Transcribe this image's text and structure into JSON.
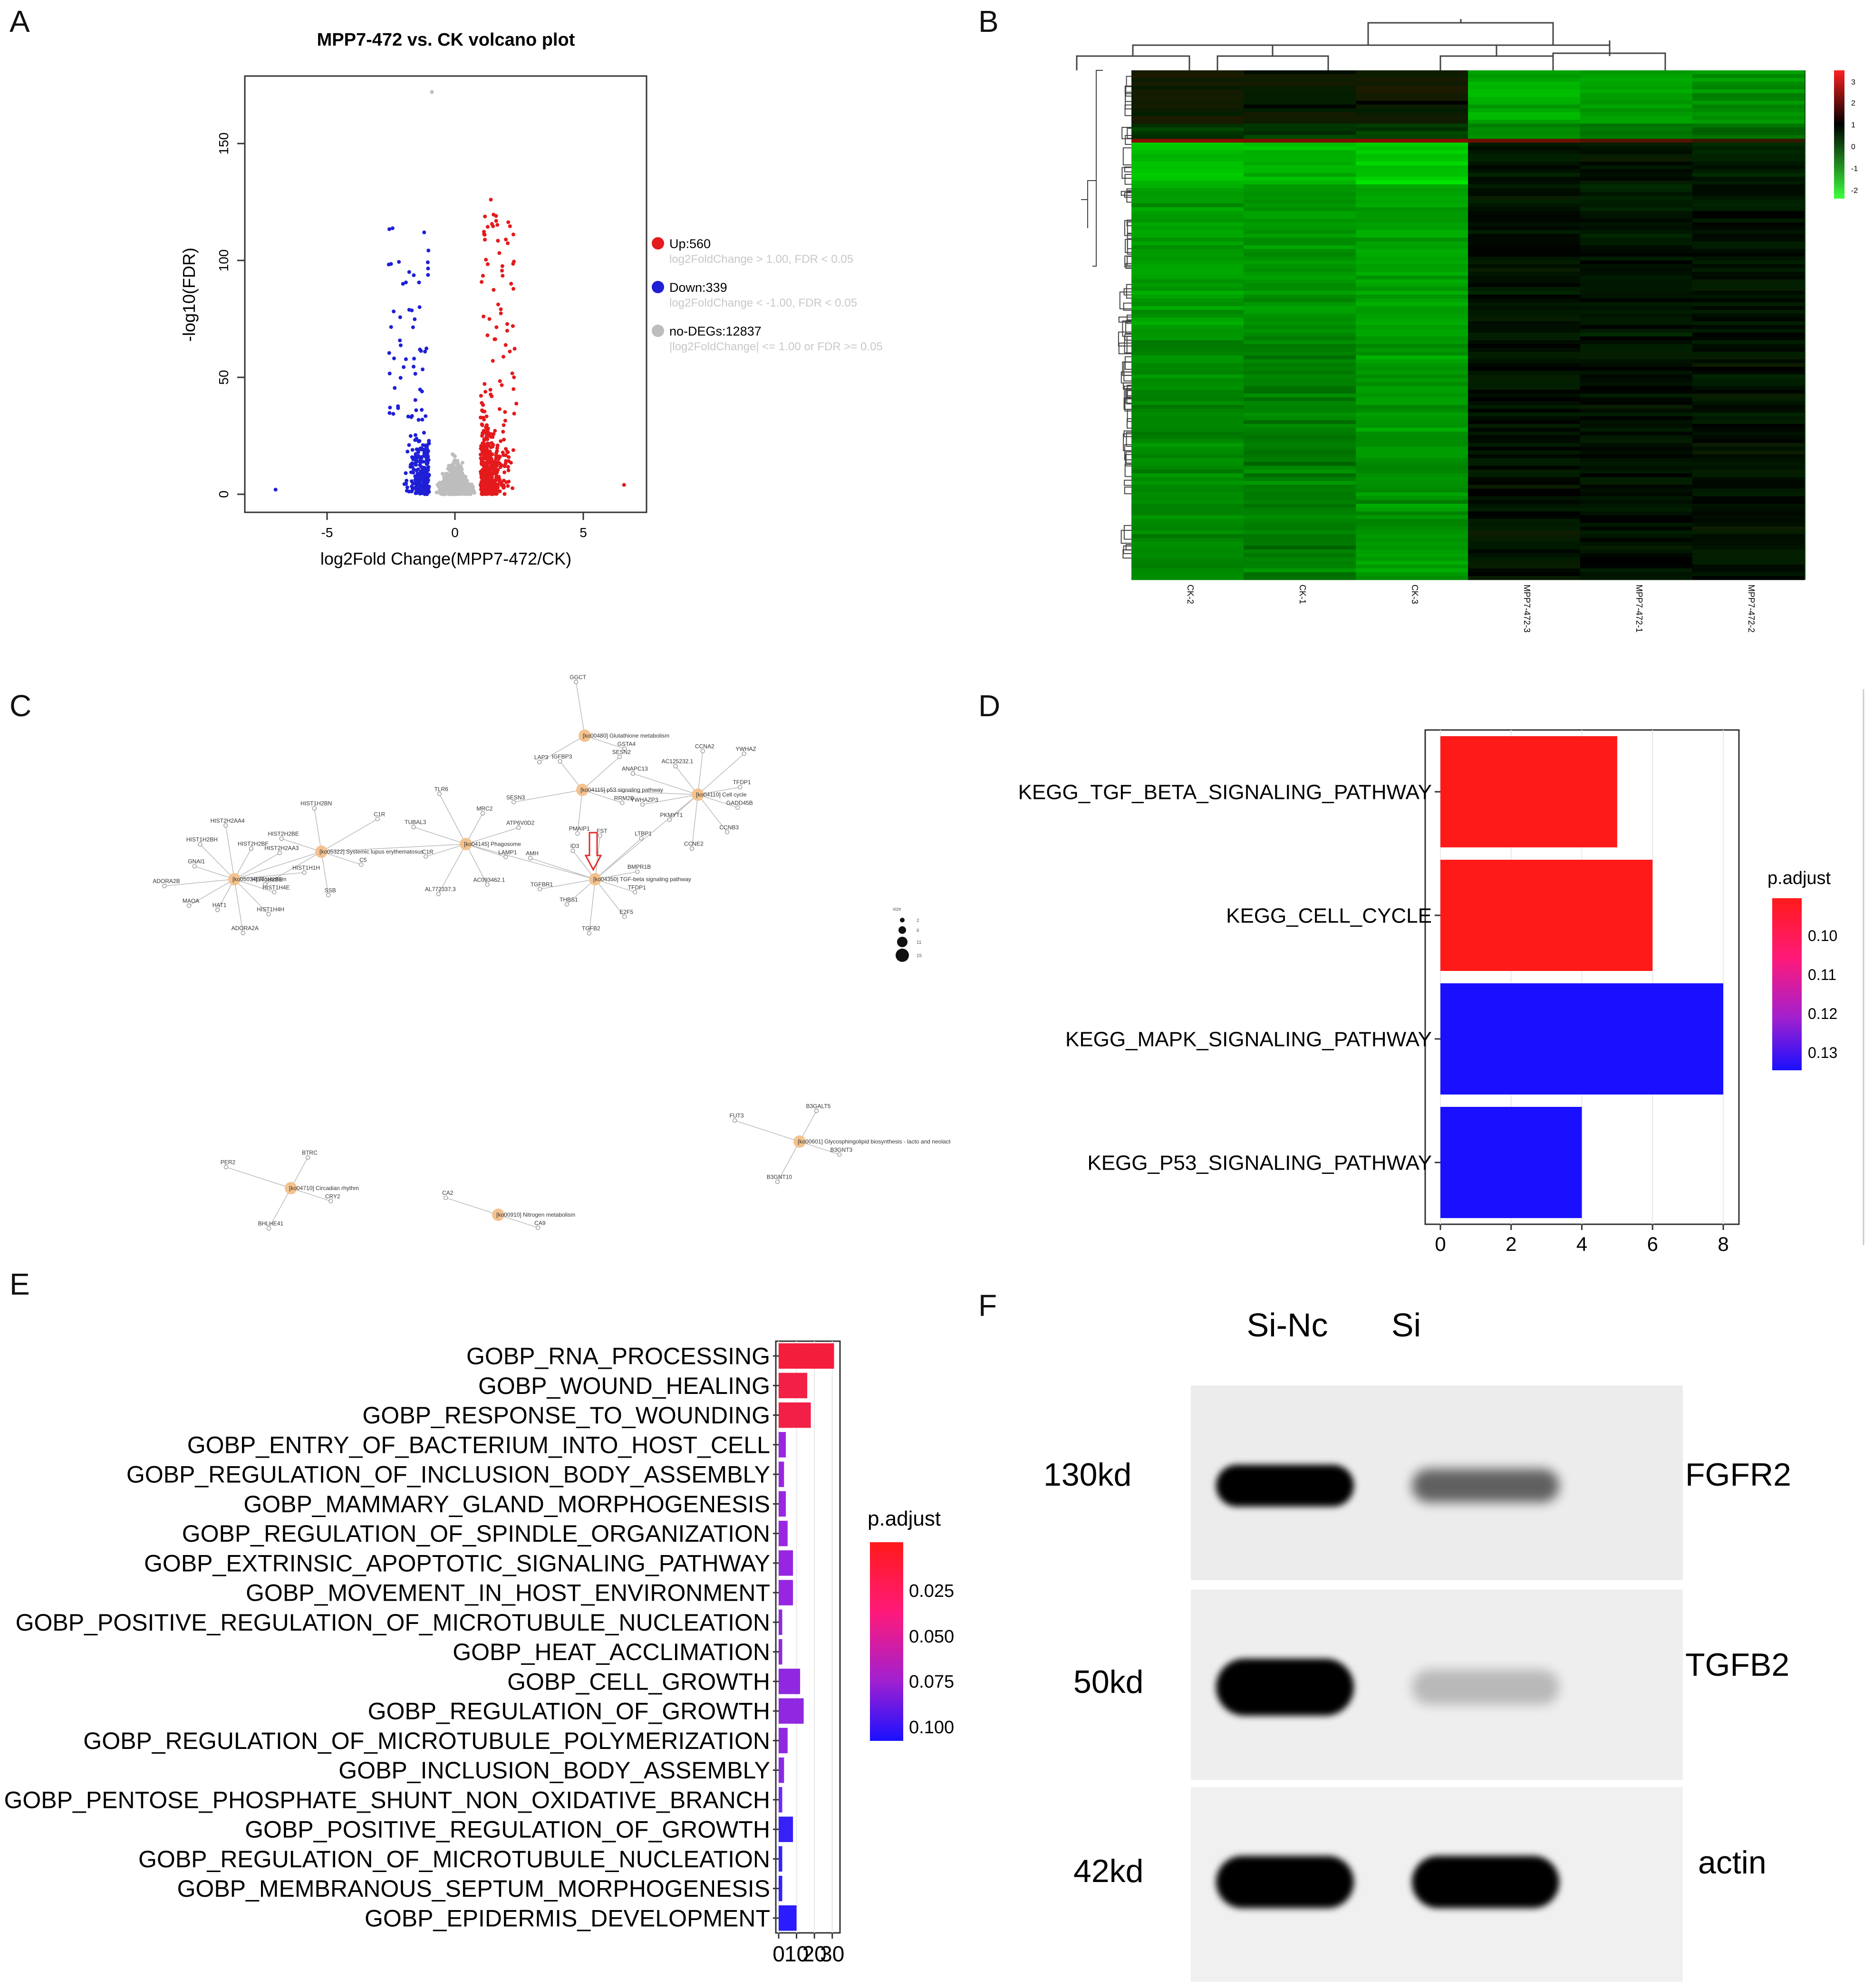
{
  "panel_letters": [
    "A",
    "B",
    "C",
    "D",
    "E",
    "F"
  ],
  "volcano": {
    "title": "MPP7-472 vs. CK volcano plot",
    "xlabel": "log2Fold Change(MPP7-472/CK)",
    "ylabel": "-log10(FDR)",
    "xticks": [
      "-5",
      "0",
      "5"
    ],
    "yticks": [
      "0",
      "50",
      "100",
      "150"
    ],
    "legend": [
      {
        "label": "Up:560",
        "note": "log2FoldChange > 1.00, FDR < 0.05",
        "color": "#e41a1c"
      },
      {
        "label": "Down:339",
        "note": "log2FoldChange < -1.00, FDR < 0.05",
        "color": "#1f1fd6"
      },
      {
        "label": "no-DEGs:12837",
        "note": "|log2FoldChange| <= 1.00 or FDR >= 0.05",
        "color": "#bdbdbd"
      }
    ]
  },
  "heatmap": {
    "columns": [
      "CK-2",
      "CK-1",
      "CK-3",
      "MPP7-472-3",
      "MPP7-472-1",
      "MPP7-472-2"
    ],
    "scale_ticks": [
      "3",
      "2",
      "1",
      "0",
      "-1",
      "-2"
    ],
    "colors": {
      "high": "#ff2020",
      "mid": "#000000",
      "low": "#3cff3c"
    }
  },
  "network": {
    "pathways": [
      "[ko00480] Glutathione metabolism",
      "[ko04115] p53 signaling pathway",
      "[ko04110] Cell cycle",
      "[ko04145] Phagosome",
      "[ko05322] Systemic lupus erythematosus",
      "[ko05034] Alcoholism",
      "[ko04350] TGF-beta signaling pathway",
      "[ko00601] Glycosphingolipid biosynthesis - lacto and neolacto series",
      "[ko04710] Circadian rhythm",
      "[ko00910] Nitrogen metabolism"
    ],
    "genes": [
      "GSTA4",
      "LAP3",
      "GGCT",
      "RRM2B",
      "PMAIP1",
      "SESN3",
      "IGFBP3",
      "SESN2",
      "GADD45B",
      "CCNB3",
      "CCNE2",
      "PKMYT1",
      "YWHAZP3",
      "ANAPC13",
      "AC125232.1",
      "CCNA2",
      "YWHAZ",
      "TFDP1",
      "E2F5",
      "TGFB2",
      "THBS1",
      "LAMP1",
      "AC093462.1",
      "AL772337.3",
      "C1R",
      "TUBAL3",
      "TLR6",
      "MRC2",
      "ATP6V0D2",
      "C5",
      "SSB",
      "HIST1H2BE",
      "HIST2H2BE",
      "HIST1H2BN",
      "HIST1H4E",
      "HIST1H4H",
      "ADORA2A",
      "HAT1",
      "MAOA",
      "ADORA2B",
      "GNAI1",
      "HIST1H2BH",
      "HIST2H2AA4",
      "HIST2H2BF",
      "HIST2H2AA3",
      "HIST1H1H",
      "TGFBR1",
      "AMH",
      "ID3",
      "FST",
      "LTBP1",
      "BMPR1B",
      "B3GNT3",
      "B3GNT10",
      "FUT3",
      "B3GALT5",
      "CRY2",
      "BHLHE41",
      "PER2",
      "BTRC",
      "CA9",
      "CA2"
    ],
    "size_legend_title": "size",
    "size_legend": [
      "2",
      "6",
      "11",
      "15"
    ]
  },
  "kegg": {
    "legend_title": "p.adjust",
    "legend_ticks": [
      "0.10",
      "0.11",
      "0.12",
      "0.13"
    ],
    "xticks": [
      "0",
      "2",
      "4",
      "6",
      "8"
    ]
  },
  "gobp": {
    "legend_title": "p.adjust",
    "legend_ticks": [
      "0.025",
      "0.050",
      "0.075",
      "0.100"
    ],
    "xticks": [
      "0",
      "10",
      "20",
      "30"
    ]
  },
  "chart_data": [
    {
      "type": "bar",
      "orientation": "horizontal",
      "categories": [
        "KEGG_TGF_BETA_SIGNALING_PATHWAY",
        "KEGG_CELL_CYCLE",
        "KEGG_MAPK_SIGNALING_PATHWAY",
        "KEGG_P53_SIGNALING_PATHWAY"
      ],
      "values": [
        5,
        6,
        8,
        4
      ],
      "colors": [
        "#ff1a1a",
        "#ff1a1a",
        "#1a10ff",
        "#1a10ff"
      ],
      "xlim": [
        0,
        8.6
      ],
      "legend_title": "p.adjust"
    },
    {
      "type": "bar",
      "orientation": "horizontal",
      "categories": [
        "GOBP_RNA_PROCESSING",
        "GOBP_WOUND_HEALING",
        "GOBP_RESPONSE_TO_WOUNDING",
        "GOBP_ENTRY_OF_BACTERIUM_INTO_HOST_CELL",
        "GOBP_REGULATION_OF_INCLUSION_BODY_ASSEMBLY",
        "GOBP_MAMMARY_GLAND_MORPHOGENESIS",
        "GOBP_REGULATION_OF_SPINDLE_ORGANIZATION",
        "GOBP_EXTRINSIC_APOPTOTIC_SIGNALING_PATHWAY",
        "GOBP_MOVEMENT_IN_HOST_ENVIRONMENT",
        "GOBP_POSITIVE_REGULATION_OF_MICROTUBULE_NUCLEATION",
        "GOBP_HEAT_ACCLIMATION",
        "GOBP_CELL_GROWTH",
        "GOBP_REGULATION_OF_GROWTH",
        "GOBP_REGULATION_OF_MICROTUBULE_POLYMERIZATION",
        "GOBP_INCLUSION_BODY_ASSEMBLY",
        "GOBP_PENTOSE_PHOSPHATE_SHUNT_NON_OXIDATIVE_BRANCH",
        "GOBP_POSITIVE_REGULATION_OF_GROWTH",
        "GOBP_REGULATION_OF_MICROTUBULE_NUCLEATION",
        "GOBP_MEMBRANOUS_SEPTUM_MORPHOGENESIS",
        "GOBP_EPIDERMIS_DEVELOPMENT"
      ],
      "values": [
        31,
        16,
        18,
        4,
        3,
        4,
        5,
        8,
        8,
        2,
        2,
        12,
        14,
        5,
        3,
        2,
        8,
        2,
        2,
        10
      ],
      "colors": [
        "#f51d3c",
        "#f22046",
        "#f22046",
        "#9a26e2",
        "#9a26e2",
        "#9a26e2",
        "#9a26e2",
        "#9626e2",
        "#9626e2",
        "#8c2ae4",
        "#8c2ae4",
        "#8f28e0",
        "#8f28e0",
        "#8f28e0",
        "#8a2ae6",
        "#6e2cf0",
        "#3820f8",
        "#3322fa",
        "#3322fa",
        "#2a1cff"
      ],
      "xlim": [
        0,
        33
      ],
      "legend_title": "p.adjust"
    }
  ],
  "western": {
    "lanes": [
      "Si-Nc",
      "Si"
    ],
    "rows": [
      {
        "kd": "130kd",
        "protein": "FGFR2",
        "band_intensity": [
          1.0,
          0.55
        ]
      },
      {
        "kd": "50kd",
        "protein": "TGFB2",
        "band_intensity": [
          1.0,
          0.15
        ]
      },
      {
        "kd": "42kd",
        "protein": "actin",
        "band_intensity": [
          1.0,
          1.0
        ]
      }
    ]
  }
}
